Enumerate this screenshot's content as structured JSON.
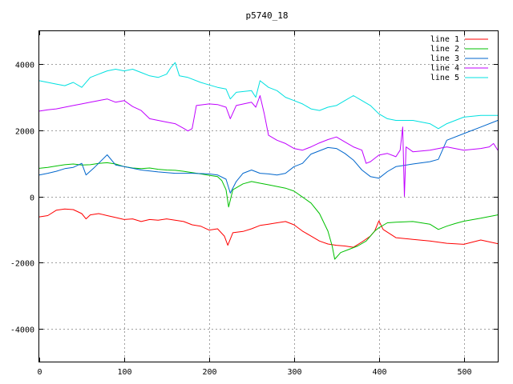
{
  "chart_data": {
    "type": "line",
    "title": "p5740_18",
    "xlabel": "",
    "ylabel": "",
    "xlim": [
      0,
      540
    ],
    "ylim": [
      -5000,
      5000
    ],
    "xticks": [
      0,
      100,
      200,
      300,
      400,
      500
    ],
    "yticks": [
      -4000,
      -2000,
      0,
      2000,
      4000
    ],
    "xtick_labels": [
      "0",
      "100",
      "200",
      "300",
      "400",
      "500"
    ],
    "ytick_labels": [
      "-4000",
      "-2000",
      "0",
      "2000",
      "4000"
    ],
    "grid": true,
    "legend_position": "top-right",
    "series": [
      {
        "name": "line 1",
        "color": "#ff0000",
        "points": [
          [
            0,
            -620
          ],
          [
            10,
            -580
          ],
          [
            20,
            -420
          ],
          [
            30,
            -380
          ],
          [
            40,
            -400
          ],
          [
            50,
            -520
          ],
          [
            55,
            -680
          ],
          [
            60,
            -560
          ],
          [
            70,
            -520
          ],
          [
            80,
            -580
          ],
          [
            90,
            -640
          ],
          [
            100,
            -700
          ],
          [
            110,
            -680
          ],
          [
            120,
            -760
          ],
          [
            130,
            -700
          ],
          [
            140,
            -720
          ],
          [
            150,
            -680
          ],
          [
            160,
            -720
          ],
          [
            170,
            -760
          ],
          [
            180,
            -860
          ],
          [
            190,
            -900
          ],
          [
            200,
            -1020
          ],
          [
            210,
            -980
          ],
          [
            218,
            -1200
          ],
          [
            222,
            -1480
          ],
          [
            228,
            -1100
          ],
          [
            240,
            -1060
          ],
          [
            250,
            -980
          ],
          [
            260,
            -880
          ],
          [
            270,
            -840
          ],
          [
            280,
            -800
          ],
          [
            290,
            -760
          ],
          [
            300,
            -860
          ],
          [
            310,
            -1050
          ],
          [
            320,
            -1200
          ],
          [
            330,
            -1350
          ],
          [
            340,
            -1440
          ],
          [
            350,
            -1480
          ],
          [
            360,
            -1500
          ],
          [
            370,
            -1540
          ],
          [
            380,
            -1380
          ],
          [
            390,
            -1200
          ],
          [
            395,
            -1050
          ],
          [
            400,
            -740
          ],
          [
            405,
            -1000
          ],
          [
            420,
            -1250
          ],
          [
            440,
            -1300
          ],
          [
            460,
            -1350
          ],
          [
            480,
            -1420
          ],
          [
            500,
            -1450
          ],
          [
            520,
            -1320
          ],
          [
            540,
            -1430
          ]
        ]
      },
      {
        "name": "line 2",
        "color": "#00c000",
        "points": [
          [
            0,
            850
          ],
          [
            10,
            880
          ],
          [
            20,
            920
          ],
          [
            30,
            960
          ],
          [
            40,
            980
          ],
          [
            50,
            950
          ],
          [
            60,
            960
          ],
          [
            70,
            1000
          ],
          [
            80,
            1020
          ],
          [
            90,
            980
          ],
          [
            100,
            900
          ],
          [
            110,
            860
          ],
          [
            120,
            840
          ],
          [
            130,
            860
          ],
          [
            140,
            820
          ],
          [
            150,
            800
          ],
          [
            160,
            790
          ],
          [
            170,
            760
          ],
          [
            180,
            720
          ],
          [
            190,
            680
          ],
          [
            200,
            640
          ],
          [
            210,
            600
          ],
          [
            215,
            480
          ],
          [
            220,
            200
          ],
          [
            223,
            -320
          ],
          [
            228,
            200
          ],
          [
            240,
            380
          ],
          [
            250,
            450
          ],
          [
            260,
            400
          ],
          [
            270,
            350
          ],
          [
            280,
            300
          ],
          [
            290,
            250
          ],
          [
            300,
            160
          ],
          [
            310,
            -20
          ],
          [
            320,
            -200
          ],
          [
            330,
            -520
          ],
          [
            340,
            -1050
          ],
          [
            345,
            -1500
          ],
          [
            348,
            -1900
          ],
          [
            355,
            -1700
          ],
          [
            365,
            -1600
          ],
          [
            375,
            -1500
          ],
          [
            385,
            -1350
          ],
          [
            395,
            -1050
          ],
          [
            400,
            -950
          ],
          [
            410,
            -800
          ],
          [
            420,
            -780
          ],
          [
            440,
            -760
          ],
          [
            460,
            -840
          ],
          [
            470,
            -1000
          ],
          [
            480,
            -900
          ],
          [
            490,
            -820
          ],
          [
            500,
            -750
          ],
          [
            520,
            -660
          ],
          [
            540,
            -560
          ]
        ]
      },
      {
        "name": "line 3",
        "color": "#0066cc",
        "points": [
          [
            0,
            650
          ],
          [
            10,
            700
          ],
          [
            20,
            760
          ],
          [
            30,
            840
          ],
          [
            40,
            880
          ],
          [
            50,
            1000
          ],
          [
            55,
            650
          ],
          [
            65,
            880
          ],
          [
            80,
            1260
          ],
          [
            90,
            950
          ],
          [
            100,
            900
          ],
          [
            120,
            800
          ],
          [
            140,
            740
          ],
          [
            160,
            700
          ],
          [
            180,
            700
          ],
          [
            200,
            680
          ],
          [
            210,
            650
          ],
          [
            220,
            520
          ],
          [
            225,
            100
          ],
          [
            232,
            450
          ],
          [
            240,
            700
          ],
          [
            250,
            800
          ],
          [
            260,
            700
          ],
          [
            270,
            680
          ],
          [
            280,
            650
          ],
          [
            290,
            700
          ],
          [
            300,
            900
          ],
          [
            310,
            1000
          ],
          [
            320,
            1280
          ],
          [
            330,
            1380
          ],
          [
            340,
            1480
          ],
          [
            350,
            1450
          ],
          [
            360,
            1300
          ],
          [
            370,
            1100
          ],
          [
            380,
            800
          ],
          [
            390,
            600
          ],
          [
            400,
            550
          ],
          [
            410,
            750
          ],
          [
            420,
            900
          ],
          [
            440,
            980
          ],
          [
            460,
            1050
          ],
          [
            470,
            1120
          ],
          [
            480,
            1700
          ],
          [
            500,
            1900
          ],
          [
            520,
            2100
          ],
          [
            540,
            2300
          ]
        ]
      },
      {
        "name": "line 4",
        "color": "#c000ff",
        "points": [
          [
            0,
            2580
          ],
          [
            10,
            2620
          ],
          [
            20,
            2650
          ],
          [
            30,
            2700
          ],
          [
            40,
            2750
          ],
          [
            50,
            2800
          ],
          [
            60,
            2850
          ],
          [
            70,
            2900
          ],
          [
            80,
            2950
          ],
          [
            90,
            2850
          ],
          [
            100,
            2900
          ],
          [
            110,
            2720
          ],
          [
            120,
            2600
          ],
          [
            130,
            2350
          ],
          [
            140,
            2300
          ],
          [
            150,
            2250
          ],
          [
            160,
            2200
          ],
          [
            170,
            2060
          ],
          [
            175,
            1980
          ],
          [
            180,
            2050
          ],
          [
            185,
            2750
          ],
          [
            200,
            2800
          ],
          [
            210,
            2780
          ],
          [
            220,
            2700
          ],
          [
            225,
            2350
          ],
          [
            232,
            2750
          ],
          [
            250,
            2850
          ],
          [
            255,
            2700
          ],
          [
            260,
            3050
          ],
          [
            265,
            2500
          ],
          [
            270,
            1850
          ],
          [
            280,
            1700
          ],
          [
            290,
            1600
          ],
          [
            300,
            1450
          ],
          [
            310,
            1400
          ],
          [
            320,
            1500
          ],
          [
            330,
            1620
          ],
          [
            340,
            1720
          ],
          [
            350,
            1800
          ],
          [
            360,
            1650
          ],
          [
            370,
            1500
          ],
          [
            380,
            1400
          ],
          [
            385,
            1000
          ],
          [
            390,
            1050
          ],
          [
            400,
            1250
          ],
          [
            410,
            1300
          ],
          [
            420,
            1200
          ],
          [
            425,
            1400
          ],
          [
            428,
            2100
          ],
          [
            430,
            0
          ],
          [
            432,
            1500
          ],
          [
            440,
            1350
          ],
          [
            460,
            1400
          ],
          [
            480,
            1500
          ],
          [
            500,
            1400
          ],
          [
            520,
            1450
          ],
          [
            530,
            1500
          ],
          [
            535,
            1600
          ],
          [
            540,
            1400
          ]
        ]
      },
      {
        "name": "line 5",
        "color": "#00e0e0",
        "points": [
          [
            0,
            3500
          ],
          [
            10,
            3450
          ],
          [
            20,
            3400
          ],
          [
            30,
            3350
          ],
          [
            40,
            3450
          ],
          [
            50,
            3300
          ],
          [
            60,
            3600
          ],
          [
            70,
            3700
          ],
          [
            80,
            3800
          ],
          [
            90,
            3850
          ],
          [
            100,
            3800
          ],
          [
            110,
            3850
          ],
          [
            120,
            3750
          ],
          [
            130,
            3650
          ],
          [
            140,
            3600
          ],
          [
            150,
            3700
          ],
          [
            155,
            3900
          ],
          [
            160,
            4050
          ],
          [
            165,
            3650
          ],
          [
            175,
            3600
          ],
          [
            190,
            3450
          ],
          [
            210,
            3300
          ],
          [
            220,
            3250
          ],
          [
            225,
            2950
          ],
          [
            232,
            3150
          ],
          [
            250,
            3200
          ],
          [
            255,
            3000
          ],
          [
            260,
            3500
          ],
          [
            270,
            3300
          ],
          [
            280,
            3200
          ],
          [
            290,
            3000
          ],
          [
            300,
            2900
          ],
          [
            310,
            2800
          ],
          [
            320,
            2650
          ],
          [
            330,
            2600
          ],
          [
            340,
            2700
          ],
          [
            350,
            2750
          ],
          [
            360,
            2900
          ],
          [
            370,
            3050
          ],
          [
            380,
            2900
          ],
          [
            390,
            2750
          ],
          [
            400,
            2500
          ],
          [
            410,
            2350
          ],
          [
            420,
            2300
          ],
          [
            440,
            2300
          ],
          [
            460,
            2200
          ],
          [
            470,
            2050
          ],
          [
            480,
            2200
          ],
          [
            500,
            2400
          ],
          [
            520,
            2450
          ],
          [
            540,
            2450
          ]
        ]
      }
    ]
  }
}
